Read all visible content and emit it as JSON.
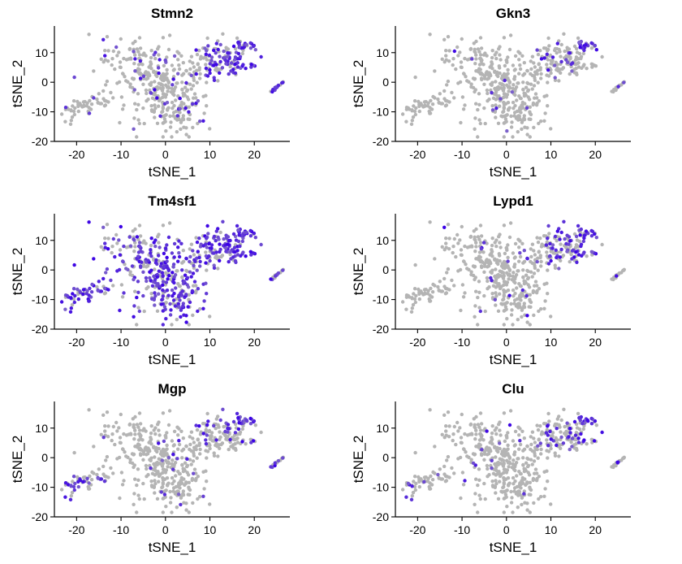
{
  "chart_data": {
    "type": "scatter",
    "xlabel": "tSNE_1",
    "ylabel": "tSNE_2",
    "xlim": [
      -25,
      28
    ],
    "ylim": [
      -20,
      19
    ],
    "xticks": [
      -20,
      -10,
      0,
      10,
      20
    ],
    "yticks": [
      -20,
      -10,
      0,
      10
    ],
    "colors": {
      "low": "#b4b4b4",
      "high": "#3a00e6"
    },
    "grid": false,
    "legend": "none",
    "panels": [
      {
        "title": "Stmn2",
        "hot_regions": [
          "right-upper",
          "right-island",
          "scattered-center"
        ]
      },
      {
        "title": "Gkn3",
        "hot_regions": [
          "right-upper-top"
        ]
      },
      {
        "title": "Tm4sf1",
        "hot_regions": [
          "left-arm",
          "center",
          "right-upper",
          "right-island"
        ]
      },
      {
        "title": "Lypd1",
        "hot_regions": [
          "right-upper"
        ]
      },
      {
        "title": "Mgp",
        "hot_regions": [
          "left-arm",
          "right-upper-top",
          "right-island"
        ]
      },
      {
        "title": "Clu",
        "hot_regions": [
          "right-upper-top",
          "left-arm-sparse"
        ]
      }
    ]
  }
}
